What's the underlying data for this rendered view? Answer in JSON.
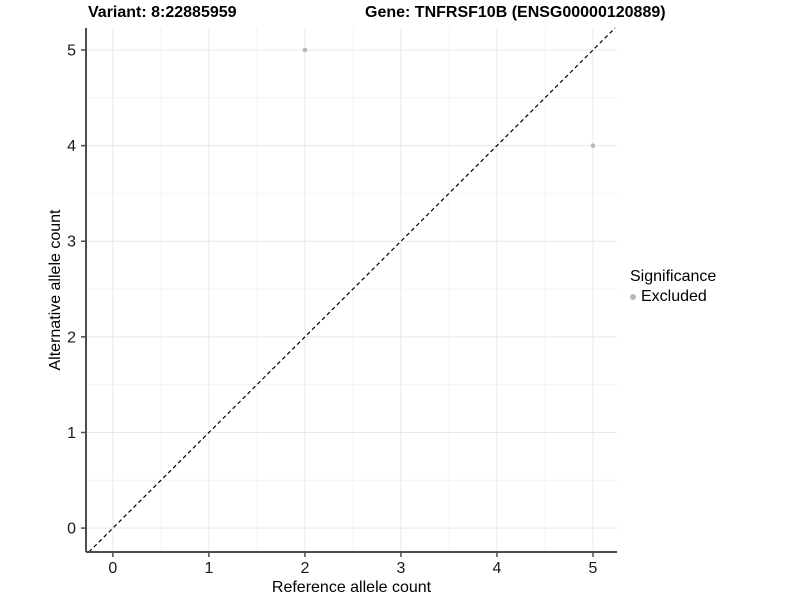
{
  "chart_data": {
    "type": "scatter",
    "title_left": "Variant: 8:22885959",
    "title_right": "Gene: TNFRSF10B (ENSG00000120889)",
    "xlabel": "Reference allele count",
    "ylabel": "Alternative allele count",
    "x_ticks": [
      0,
      1,
      2,
      3,
      4,
      5
    ],
    "y_ticks": [
      0,
      1,
      2,
      3,
      4,
      5
    ],
    "x_minor": [
      0.5,
      1.5,
      2.5,
      3.5,
      4.5
    ],
    "y_minor": [
      0.5,
      1.5,
      2.5,
      3.5,
      4.5
    ],
    "xlim": [
      -0.28,
      5.25
    ],
    "ylim": [
      -0.25,
      5.23
    ],
    "grid": true,
    "identity_line": {
      "type": "dashed",
      "equation": "y = x"
    },
    "series": [
      {
        "name": "Excluded",
        "points": [
          {
            "x": 2,
            "y": 5
          },
          {
            "x": 5,
            "y": 4
          }
        ]
      }
    ],
    "legend": {
      "title": "Significance",
      "position": "right",
      "items": [
        {
          "label": "Excluded",
          "color": "#b8b8b8"
        }
      ]
    },
    "style": {
      "point_color": "#b8b8b8",
      "identity_color": "#000000",
      "grid_major": "#e8e8e8",
      "grid_minor": "#f4f4f4",
      "axis_line": "#4d4d4d",
      "text_color": "#1a1a1a",
      "background": "#ffffff"
    }
  }
}
